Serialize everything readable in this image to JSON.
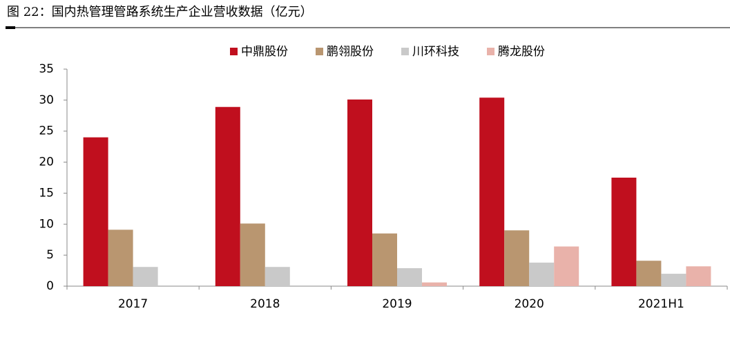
{
  "title": "图 22：国内热管理管路系统生产企业营收数据（亿元）",
  "chart_data": {
    "type": "bar",
    "categories": [
      "2017",
      "2018",
      "2019",
      "2020",
      "2021H1"
    ],
    "series": [
      {
        "name": "中鼎股份",
        "color": "#c00f1e",
        "values": [
          24.0,
          28.9,
          30.1,
          30.4,
          17.5
        ]
      },
      {
        "name": "鹏翎股份",
        "color": "#b99670",
        "values": [
          9.1,
          10.1,
          8.5,
          9.0,
          4.1
        ]
      },
      {
        "name": "川环科技",
        "color": "#c9c9c9",
        "values": [
          3.1,
          3.1,
          2.9,
          3.8,
          2.0
        ]
      },
      {
        "name": "腾龙股份",
        "color": "#e9b2aa",
        "values": [
          null,
          null,
          0.6,
          6.4,
          3.2
        ]
      }
    ],
    "ylim": [
      0,
      35
    ],
    "yticks": [
      0,
      5,
      10,
      15,
      20,
      25,
      30,
      35
    ],
    "legend": "top"
  }
}
